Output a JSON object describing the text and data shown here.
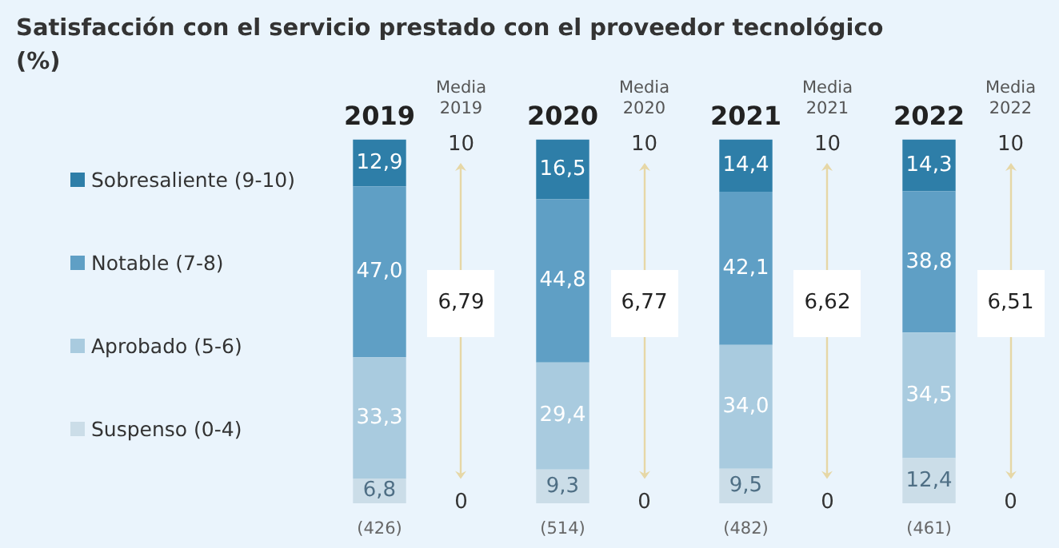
{
  "chart_data": {
    "type": "bar",
    "title": "Satisfacción con el servicio prestado con el proveedor tecnológico (%)",
    "categories": [
      "2019",
      "2020",
      "2021",
      "2022"
    ],
    "stacked": true,
    "legend": "left",
    "tick_labels": "x",
    "grid": false,
    "ylim": [
      0,
      100
    ],
    "series": [
      {
        "name": "Suspenso (0-4)",
        "color": "#cbdde8",
        "values": [
          6.8,
          9.3,
          9.5,
          12.4
        ],
        "value_labels": [
          "6,8",
          "9,3",
          "9,5",
          "12,4"
        ]
      },
      {
        "name": "Aprobado (5-6)",
        "color": "#a9cbdf",
        "values": [
          33.3,
          29.4,
          34.0,
          34.5
        ],
        "value_labels": [
          "33,3",
          "29,4",
          "34,0",
          "34,5"
        ]
      },
      {
        "name": "Notable (7-8)",
        "color": "#5f9fc5",
        "values": [
          47.0,
          44.8,
          42.1,
          38.8
        ],
        "value_labels": [
          "47,0",
          "44,8",
          "42,1",
          "38,8"
        ]
      },
      {
        "name": "Sobresaliente (9-10)",
        "color": "#2e7ea8",
        "values": [
          12.9,
          16.5,
          14.4,
          14.3
        ],
        "value_labels": [
          "12,9",
          "16,5",
          "14,4",
          "14,3"
        ]
      }
    ],
    "annotations": [
      "Media 2019",
      "10",
      "0",
      "6,79",
      "(426)",
      "Media 2020",
      "10",
      "0",
      "6,77",
      "(514)",
      "Media 2021",
      "10",
      "0",
      "6,62",
      "(482)",
      "Media 2022",
      "10",
      "0",
      "6,51",
      "(461)"
    ]
  }
}
